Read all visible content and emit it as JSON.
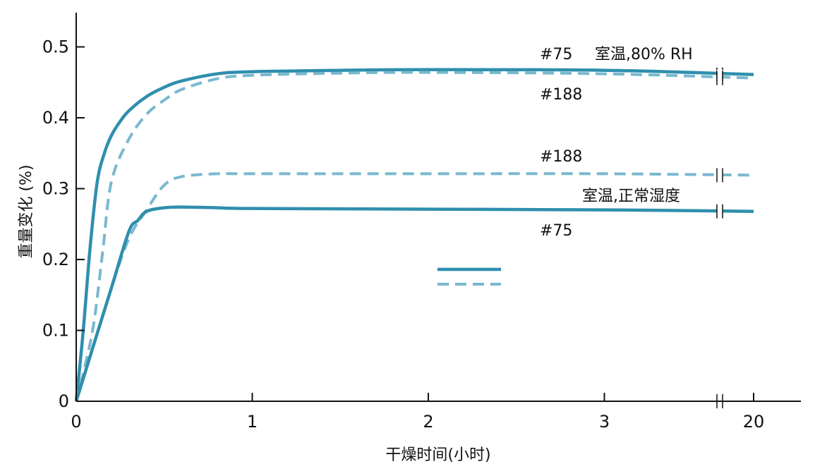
{
  "chart_data": {
    "type": "line",
    "xlabel": "干燥时间(小时)",
    "ylabel": "重量变化 (%)",
    "x_ticks": [
      "0",
      "1",
      "2",
      "3",
      "20"
    ],
    "y_ticks": [
      "0",
      "0.1",
      "0.2",
      "0.3",
      "0.4",
      "0.5"
    ],
    "xlim": [
      0,
      20
    ],
    "ylim": [
      0,
      0.55
    ],
    "x_axis_break": "between 3 and 20",
    "grid": false,
    "annotations": {
      "high_75": "#75",
      "high_condition": "室温,80% RH",
      "high_188": "#188",
      "low_188": "#188",
      "low_condition": "室温,正常湿度",
      "low_75": "#75"
    },
    "colors": {
      "solid": "#2f8fad",
      "dashed": "#79b8cf",
      "axis": "#111111"
    },
    "series": [
      {
        "group": "室温,80% RH",
        "sample": "#75",
        "style": "solid",
        "x": [
          0,
          0.04,
          0.08,
          0.12,
          0.16,
          0.2,
          0.25,
          0.3,
          0.4,
          0.5,
          0.6,
          0.8,
          1.0,
          1.5,
          2.0,
          3.0,
          20.0
        ],
        "y": [
          0,
          0.1,
          0.22,
          0.31,
          0.35,
          0.375,
          0.395,
          0.41,
          0.43,
          0.443,
          0.452,
          0.462,
          0.465,
          0.467,
          0.468,
          0.467,
          0.461
        ]
      },
      {
        "group": "室温,80% RH",
        "sample": "#188",
        "style": "dashed",
        "x": [
          0,
          0.05,
          0.1,
          0.15,
          0.2,
          0.3,
          0.4,
          0.5,
          0.6,
          0.8,
          1.0,
          1.5,
          2.0,
          3.0,
          20.0
        ],
        "y": [
          0,
          0.05,
          0.11,
          0.21,
          0.31,
          0.37,
          0.405,
          0.425,
          0.44,
          0.455,
          0.46,
          0.463,
          0.464,
          0.462,
          0.456
        ]
      },
      {
        "group": "室温,正常湿度",
        "sample": "#188",
        "style": "dashed",
        "x": [
          0,
          0.1,
          0.2,
          0.3,
          0.4,
          0.5,
          0.6,
          0.8,
          1.0,
          2.0,
          3.0,
          20.0
        ],
        "y": [
          0,
          0.08,
          0.16,
          0.23,
          0.27,
          0.305,
          0.317,
          0.321,
          0.321,
          0.321,
          0.321,
          0.319
        ]
      },
      {
        "group": "室温,正常湿度",
        "sample": "#75",
        "style": "solid",
        "x": [
          0,
          0.1,
          0.2,
          0.3,
          0.35,
          0.4,
          0.5,
          0.6,
          0.8,
          1.0,
          2.0,
          3.0,
          20.0
        ],
        "y": [
          0,
          0.08,
          0.16,
          0.24,
          0.255,
          0.268,
          0.273,
          0.274,
          0.273,
          0.272,
          0.271,
          0.27,
          0.268
        ]
      }
    ],
    "legend": [
      {
        "style": "solid",
        "color": "#2f8fad"
      },
      {
        "style": "dashed",
        "color": "#79b8cf"
      }
    ]
  }
}
